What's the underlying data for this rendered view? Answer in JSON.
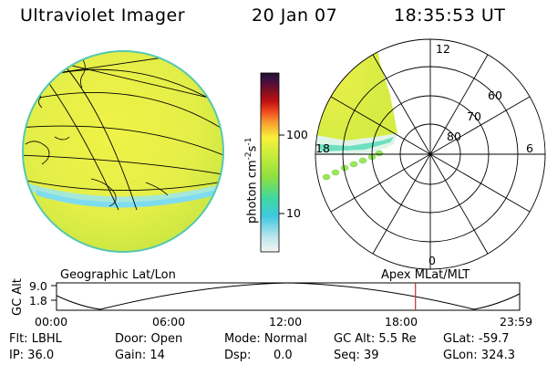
{
  "header": {
    "title": "Ultraviolet Imager",
    "date": "20 Jan 07",
    "time": "18:35:53 UT"
  },
  "colorbar": {
    "unit_main": "photon cm",
    "unit_sup1": "-2",
    "unit_mid": "s",
    "unit_sup2": "-1",
    "ticks": [
      "100",
      "10"
    ]
  },
  "polar": {
    "mlt_labels": [
      "12",
      "18",
      "6",
      "0"
    ],
    "lat_labels": [
      "60",
      "70",
      "80"
    ]
  },
  "panels": {
    "left_label": "Geographic Lat/Lon",
    "right_label": "Apex MLat/MLT"
  },
  "orbit": {
    "ylabel": "GC Alt",
    "yticks": [
      "9.0",
      "1.8"
    ],
    "xticks": [
      "00:00",
      "06:00",
      "12:00",
      "18:00",
      "23:59"
    ],
    "marker_hour": 18.6
  },
  "status": {
    "flt": "Flt: LBHL",
    "door": "Door: Open",
    "mode": "Mode: Normal",
    "gcalt": "GC Alt: 5.5 Re",
    "glat": "GLat: -59.7",
    "ip": "IP: 36.0",
    "gain": "Gain: 14",
    "dsp_label": "Dsp:",
    "dsp_value": "0.0",
    "seq": "Seq: 39",
    "glon": "GLon: 324.3"
  },
  "colors": {
    "disk_yellow": "#ebf04a",
    "disk_green": "#c4e640",
    "band_cyan": "#8fe6e0",
    "aurora_green": "#9ee85a",
    "marker_red": "#c03030"
  }
}
